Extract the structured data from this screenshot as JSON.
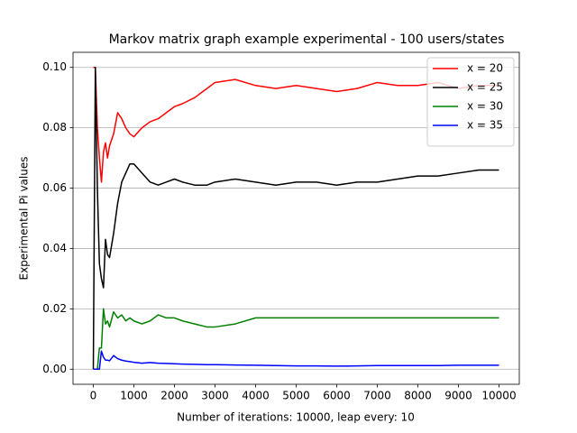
{
  "chart_data": {
    "type": "line",
    "title": "Markov matrix graph example experimental - 100 users/states",
    "x_label": "Number of iterations: 10000, leap every: 10",
    "y_label": "Experimental Pi values",
    "x": [
      0,
      50,
      100,
      150,
      200,
      250,
      300,
      350,
      400,
      500,
      600,
      700,
      800,
      900,
      1000,
      1200,
      1400,
      1600,
      1800,
      2000,
      2200,
      2500,
      2800,
      3000,
      3500,
      4000,
      4500,
      5000,
      5500,
      6000,
      6500,
      7000,
      7500,
      8000,
      8500,
      9000,
      9500,
      10000
    ],
    "series": [
      {
        "name": "x = 20",
        "color": "#ff0000",
        "values": [
          0.1,
          0.1,
          0.08,
          0.07,
          0.062,
          0.072,
          0.075,
          0.07,
          0.074,
          0.078,
          0.085,
          0.083,
          0.08,
          0.078,
          0.077,
          0.08,
          0.082,
          0.083,
          0.085,
          0.087,
          0.088,
          0.09,
          0.093,
          0.095,
          0.096,
          0.094,
          0.093,
          0.094,
          0.093,
          0.092,
          0.093,
          0.095,
          0.094,
          0.094,
          0.095,
          0.093,
          0.094,
          0.094
        ]
      },
      {
        "name": "x = 25",
        "color": "#000000",
        "values": [
          0,
          0.1,
          0.06,
          0.035,
          0.03,
          0.027,
          0.043,
          0.038,
          0.037,
          0.045,
          0.055,
          0.062,
          0.065,
          0.068,
          0.068,
          0.065,
          0.062,
          0.061,
          0.062,
          0.063,
          0.062,
          0.061,
          0.061,
          0.062,
          0.063,
          0.062,
          0.061,
          0.062,
          0.062,
          0.061,
          0.062,
          0.062,
          0.063,
          0.064,
          0.064,
          0.065,
          0.066,
          0.066
        ]
      },
      {
        "name": "x = 30",
        "color": "#008000",
        "values": [
          0,
          0,
          0,
          0.007,
          0.007,
          0.02,
          0.015,
          0.016,
          0.014,
          0.019,
          0.017,
          0.018,
          0.016,
          0.017,
          0.016,
          0.015,
          0.016,
          0.018,
          0.017,
          0.017,
          0.016,
          0.015,
          0.014,
          0.014,
          0.015,
          0.017,
          0.017,
          0.017,
          0.017,
          0.017,
          0.017,
          0.017,
          0.017,
          0.017,
          0.017,
          0.017,
          0.017,
          0.017
        ]
      },
      {
        "name": "x = 35",
        "color": "#0000ff",
        "values": [
          0,
          0,
          0,
          0,
          0.006,
          0.004,
          0.003,
          0.003,
          0.0028,
          0.0045,
          0.0035,
          0.003,
          0.0027,
          0.0025,
          0.0023,
          0.002,
          0.0022,
          0.002,
          0.0019,
          0.0018,
          0.0017,
          0.0016,
          0.0015,
          0.0015,
          0.0014,
          0.0013,
          0.0012,
          0.0011,
          0.0011,
          0.001,
          0.0011,
          0.0012,
          0.0012,
          0.0012,
          0.0012,
          0.0013,
          0.0013,
          0.0013
        ]
      }
    ],
    "xlim": [
      -500,
      10500
    ],
    "ylim": [
      -0.005,
      0.105
    ],
    "xticks": [
      0,
      1000,
      2000,
      3000,
      4000,
      5000,
      6000,
      7000,
      8000,
      9000,
      10000
    ],
    "yticks": [
      {
        "value": 0,
        "label": "0.00"
      },
      {
        "value": 0.02,
        "label": "0.02"
      },
      {
        "value": 0.04,
        "label": "0.04"
      },
      {
        "value": 0.06,
        "label": "0.06"
      },
      {
        "value": 0.08,
        "label": "0.08"
      },
      {
        "value": 0.1,
        "label": "0.10"
      }
    ],
    "grid": "y",
    "legend": "upper right"
  }
}
